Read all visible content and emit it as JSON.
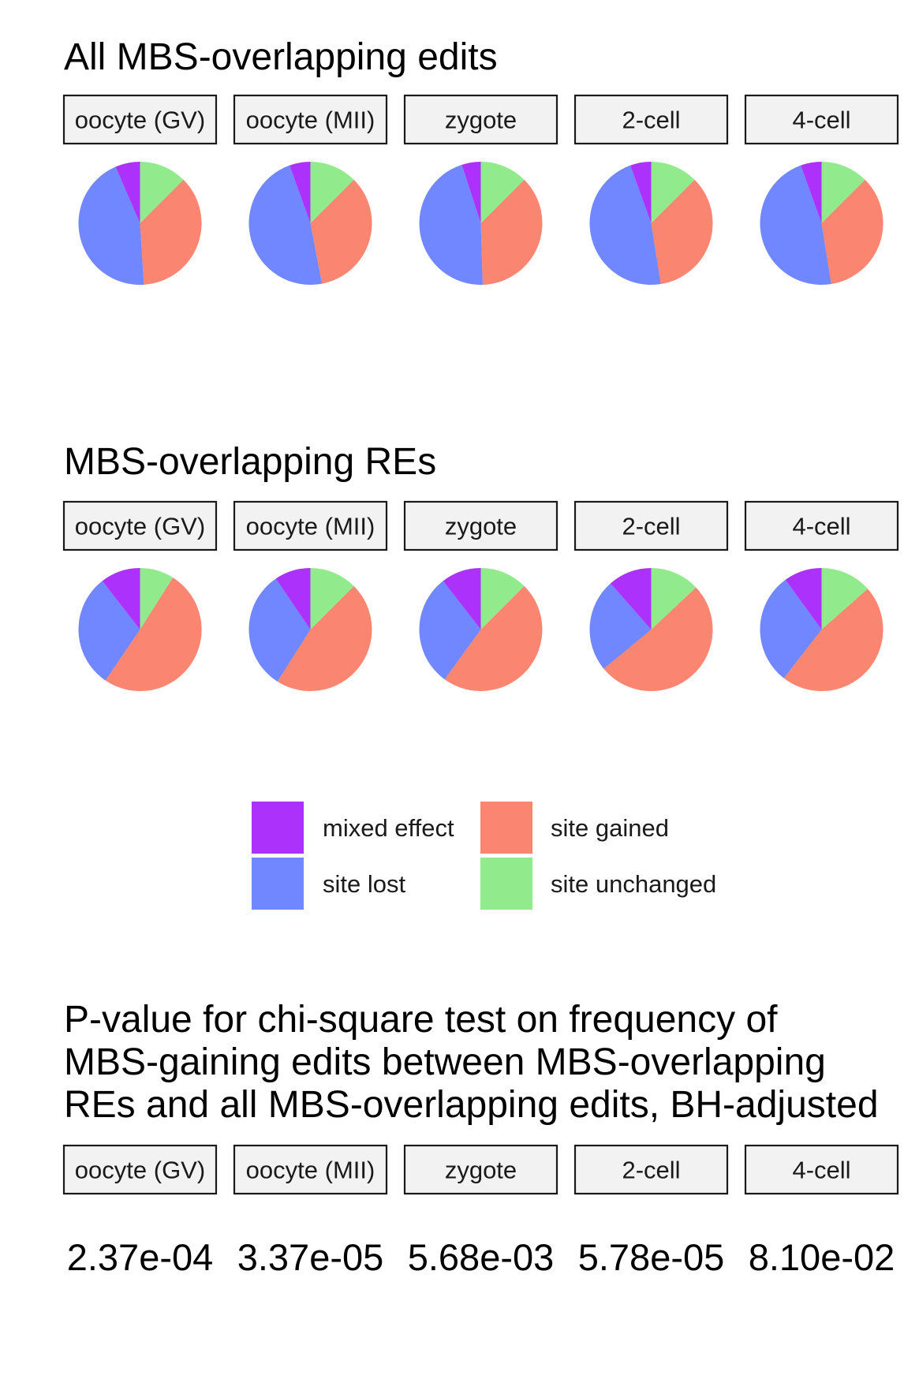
{
  "colors": {
    "mixed effect": "#AC32FB",
    "site gained": "#FA8570",
    "site lost": "#7087FF",
    "site unchanged": "#91EA8B",
    "strip_fill": "#F2F2F2",
    "strip_border": "#1a1a1a"
  },
  "panels": [
    "oocyte (GV)",
    "oocyte (MII)",
    "zygote",
    "2-cell",
    "4-cell"
  ],
  "chart_data": [
    {
      "type": "pie",
      "title": "All MBS-overlapping edits",
      "facets": [
        "oocyte (GV)",
        "oocyte (MII)",
        "zygote",
        "2-cell",
        "4-cell"
      ],
      "slice_order": [
        "site unchanged",
        "site gained",
        "site lost",
        "mixed effect"
      ],
      "series": [
        {
          "name": "oocyte (GV)",
          "values": [
            12.5,
            36.5,
            44.5,
            6.5
          ]
        },
        {
          "name": "oocyte (MII)",
          "values": [
            12.5,
            34.5,
            47.5,
            5.5
          ]
        },
        {
          "name": "zygote",
          "values": [
            12.5,
            37.0,
            45.5,
            5.0
          ]
        },
        {
          "name": "2-cell",
          "values": [
            12.5,
            35.0,
            47.0,
            5.5
          ]
        },
        {
          "name": "4-cell",
          "values": [
            12.5,
            35.0,
            47.0,
            5.5
          ]
        }
      ]
    },
    {
      "type": "pie",
      "title": "MBS-overlapping REs",
      "facets": [
        "oocyte (GV)",
        "oocyte (MII)",
        "zygote",
        "2-cell",
        "4-cell"
      ],
      "slice_order": [
        "site unchanged",
        "site gained",
        "site lost",
        "mixed effect"
      ],
      "series": [
        {
          "name": "oocyte (GV)",
          "values": [
            9.0,
            50.5,
            30.0,
            10.5
          ]
        },
        {
          "name": "oocyte (MII)",
          "values": [
            12.5,
            46.5,
            31.5,
            9.5
          ]
        },
        {
          "name": "zygote",
          "values": [
            12.5,
            47.5,
            29.5,
            10.5
          ]
        },
        {
          "name": "2-cell",
          "values": [
            13.0,
            51.0,
            24.5,
            11.5
          ]
        },
        {
          "name": "4-cell",
          "values": [
            13.5,
            47.0,
            29.5,
            10.0
          ]
        }
      ]
    }
  ],
  "legend": {
    "items": [
      "mixed effect",
      "site gained",
      "site lost",
      "site unchanged"
    ]
  },
  "pvalue_section": {
    "title_lines": [
      "P-value for chi-square test on frequency of",
      "MBS-gaining edits between MBS-overlapping",
      "REs and all MBS-overlapping edits, BH-adjusted"
    ],
    "values": [
      "2.37e-04",
      "3.37e-05",
      "5.68e-03",
      "5.78e-05",
      "8.10e-02"
    ]
  }
}
